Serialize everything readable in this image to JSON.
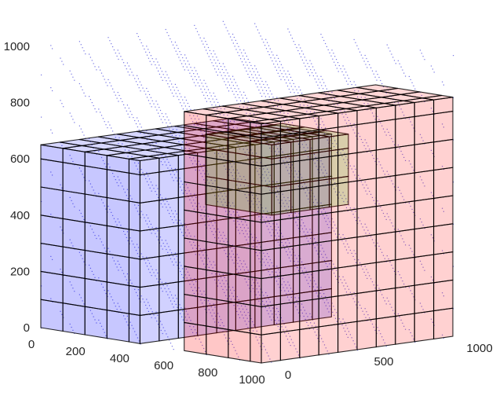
{
  "chart_data": {
    "type": "scatter",
    "projection": "3d",
    "title": "",
    "xlabel": "",
    "ylabel": "",
    "zlabel": "",
    "grid": true,
    "legend": "none",
    "xlim": [
      0,
      1000
    ],
    "ylim": [
      0,
      1000
    ],
    "zlim": [
      0,
      1000
    ],
    "x_ticks": [
      {
        "value": 0,
        "label": "0"
      },
      {
        "value": 200,
        "label": "200"
      },
      {
        "value": 400,
        "label": "400"
      },
      {
        "value": 600,
        "label": "600"
      },
      {
        "value": 800,
        "label": "800"
      },
      {
        "value": 1000,
        "label": "1000"
      }
    ],
    "y_ticks": [
      {
        "value": 0,
        "label": "0"
      },
      {
        "value": 500,
        "label": "500"
      },
      {
        "value": 1000,
        "label": "1000"
      }
    ],
    "z_ticks": [
      {
        "value": 0,
        "label": "0"
      },
      {
        "value": 200,
        "label": "200"
      },
      {
        "value": 400,
        "label": "400"
      },
      {
        "value": 600,
        "label": "600"
      },
      {
        "value": 800,
        "label": "800"
      },
      {
        "value": 1000,
        "label": "1000"
      }
    ],
    "series": [
      {
        "shape": "box",
        "color": "#0000ff",
        "x": [
          0,
          450
        ],
        "y": [
          0,
          1000
        ],
        "z": [
          0,
          650
        ]
      },
      {
        "shape": "box",
        "color": "#00e600",
        "x": [
          400,
          700
        ],
        "y": [
          400,
          800
        ],
        "z": [
          450,
          700
        ]
      },
      {
        "shape": "box",
        "color": "#ff0000",
        "x": [
          650,
          1000
        ],
        "y": [
          0,
          1000
        ],
        "z": [
          0,
          850
        ]
      },
      {
        "shape": "points",
        "color": "#0000cc",
        "x": [
          0,
          1000
        ],
        "y": [
          0,
          1000
        ],
        "z": [
          0,
          1000
        ],
        "note_points": "dense sample points on a regular 3-D lattice"
      }
    ]
  }
}
